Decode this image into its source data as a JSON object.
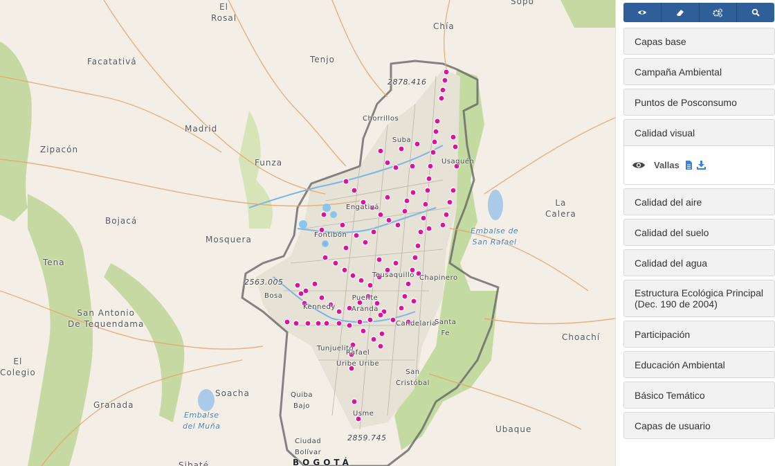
{
  "toolbar": {
    "buttons": [
      {
        "icon": "eye-icon"
      },
      {
        "icon": "eraser-icon"
      },
      {
        "icon": "gears-icon"
      },
      {
        "icon": "search-icon"
      }
    ]
  },
  "layers": {
    "capas_base": "Capas base",
    "campana": "Campaña Ambiental",
    "posconsumo": "Puntos de Posconsumo",
    "calidad_visual": "Calidad visual",
    "vallas": "Vallas",
    "calidad_aire": "Calidad del aire",
    "calidad_suelo": "Calidad del suelo",
    "calidad_agua": "Calidad del agua",
    "estructura": "Estructura Ecológica Principal (Dec. 190 de 2004)",
    "participacion": "Participación",
    "educacion": "Educación Ambiental",
    "basico": "Básico Temático",
    "usuario": "Capas de usuario"
  },
  "map": {
    "places": {
      "el_rosal": "El\nRosal",
      "sopo": "Sopó",
      "chia": "Chía",
      "facatativa": "Facatativá",
      "tenjo": "Tenjo",
      "madrid": "Madrid",
      "zipacon": "Zipacón",
      "funza": "Funza",
      "bojaca": "Bojacá",
      "mosquera": "Mosquera",
      "la_calera": "La\nCalera",
      "tena": "Tena",
      "san_antonio": "San Antonio\nDe Tequendama",
      "el_colegio": "El\nColegio",
      "granada": "Granada",
      "soacha": "Soacha",
      "choachi": "Choachí",
      "ubaque": "Ubaque",
      "sibate": "Sibaté",
      "chorrillos": "Chorrillos",
      "suba": "Suba",
      "usaquen": "Usaquén",
      "engativa": "Engativá",
      "fontibon": "Fontibón",
      "chapinero": "Chapinero",
      "bosa": "Bosa",
      "kennedy": "Kennedy",
      "puente_aranda": "Puente\nAranda",
      "teusaquillo": "Teusaquillo",
      "candelaria": "Candelaria",
      "santa_fe": "Santa\nFe",
      "tunjuelito": "Tunjuelito",
      "rafael_uribe": "Rafael\nUribe Uribe",
      "san_cristobal": "San\nCristóbal",
      "quiba_bajo": "Quiba\nBajo",
      "usme": "Usme",
      "ciudad_bolivar": "Ciudad\nBolívar",
      "bogota": "BOGOTÁ",
      "embalse_san_rafael": "Embalse de\nSan Rafael",
      "embalse_muna": "Embalse\ndel Muña",
      "elev_1": "2878.416",
      "elev_2": "2563.005",
      "elev_3": "2859.745"
    }
  }
}
